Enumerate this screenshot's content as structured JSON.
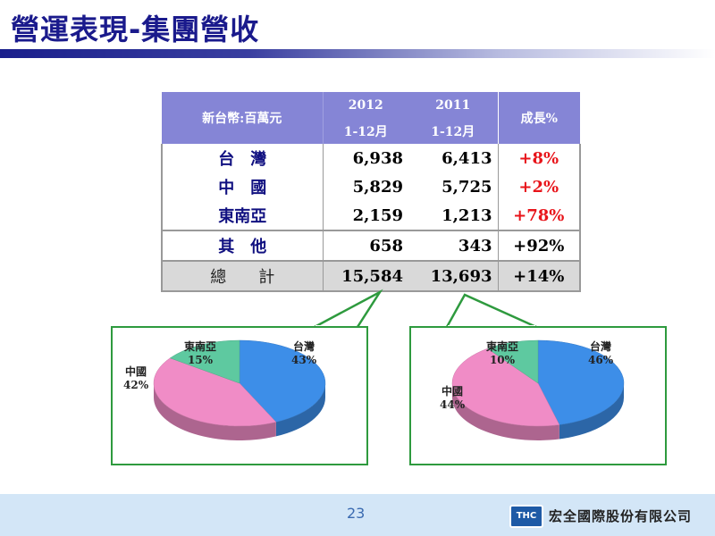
{
  "title": "營運表現-集團營收",
  "table": {
    "header_label": "新台幣:百萬元",
    "col_2012_year": "2012",
    "col_2012_period": "1-12月",
    "col_2011_year": "2011",
    "col_2011_period": "1-12月",
    "col_growth": "成長%",
    "rows": [
      {
        "name": "台　灣",
        "v2012": "6,938",
        "v2011": "6,413",
        "growth": "+8%"
      },
      {
        "name": "中　國",
        "v2012": "5,829",
        "v2011": "5,725",
        "growth": "+2%"
      },
      {
        "name": "東南亞",
        "v2012": "2,159",
        "v2011": "1,213",
        "growth": "+78%"
      },
      {
        "name": "其　他",
        "v2012": "658",
        "v2011": "343",
        "growth": "+92%"
      },
      {
        "name": "總　　計",
        "v2012": "15,584",
        "v2011": "13,693",
        "growth": "+14%"
      }
    ]
  },
  "pies": [
    {
      "labels": {
        "taiwan": "台灣",
        "taiwan_pct": "43%",
        "china": "中國",
        "china_pct": "42%",
        "sea": "東南亞",
        "sea_pct": "15%"
      },
      "values": {
        "taiwan": 43,
        "china": 42,
        "sea": 15
      }
    },
    {
      "labels": {
        "taiwan": "台灣",
        "taiwan_pct": "46%",
        "china": "中國",
        "china_pct": "44%",
        "sea": "東南亞",
        "sea_pct": "10%"
      },
      "values": {
        "taiwan": 46,
        "china": 44,
        "sea": 10
      }
    }
  ],
  "colors": {
    "taiwan": "#3d8ee8",
    "china": "#f08cc6",
    "sea": "#5ec9a0"
  },
  "footer": {
    "page_number": "23",
    "logo_text": "THC",
    "company": "宏全國際股份有限公司"
  }
}
